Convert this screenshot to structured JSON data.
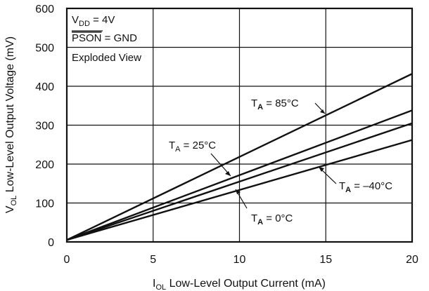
{
  "chart_data": {
    "type": "line",
    "xlabel": {
      "main": "I",
      "sub": "OL",
      "rest": " Low-Level Output Current (mA)"
    },
    "ylabel": {
      "main": "V",
      "sub": "OL",
      "rest": " Low-Level Output Voltage (mV)"
    },
    "xlim": [
      0,
      20
    ],
    "ylim": [
      0,
      600
    ],
    "x_ticks": [
      "0",
      "5",
      "10",
      "15",
      "20"
    ],
    "y_ticks": [
      "0",
      "100",
      "200",
      "300",
      "400",
      "500",
      "600"
    ],
    "grid": true,
    "conditions": {
      "vdd": {
        "main": "V",
        "sub": "DD",
        "rest": " = 4V"
      },
      "pson": {
        "main": "PSON",
        "rest": " = GND"
      },
      "view": "Exploded View"
    },
    "series": [
      {
        "label": {
          "main": "T",
          "sub": "A",
          "rest": " = 85°C"
        },
        "x": [
          0,
          20
        ],
        "y": [
          5,
          432
        ]
      },
      {
        "label": {
          "main": "T",
          "sub": "A",
          "rest": " = 25°C"
        },
        "x": [
          0,
          20
        ],
        "y": [
          5,
          338
        ]
      },
      {
        "label": {
          "main": "T",
          "sub": "A",
          "rest": " = 0°C"
        },
        "x": [
          0,
          20
        ],
        "y": [
          5,
          305
        ]
      },
      {
        "label": {
          "main": "T",
          "sub": "A",
          "rest": " = –40°C"
        },
        "x": [
          0,
          20
        ],
        "y": [
          5,
          262
        ]
      }
    ]
  }
}
